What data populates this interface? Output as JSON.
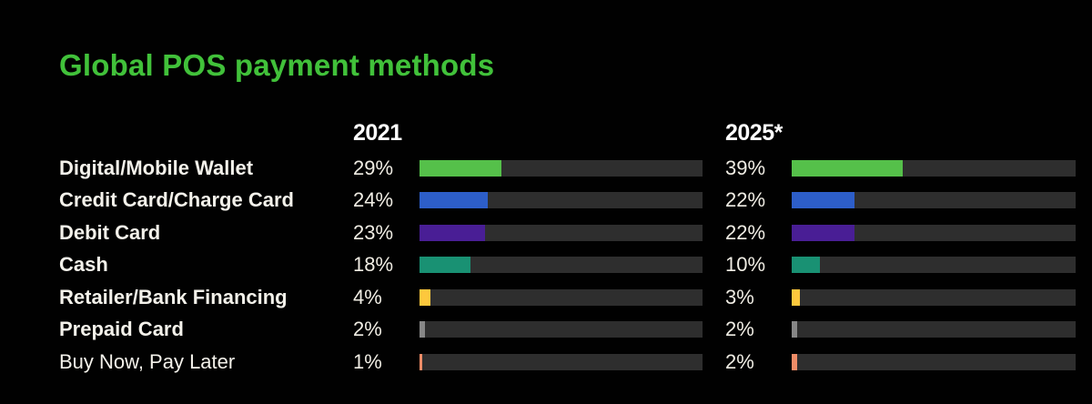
{
  "title": "Global POS payment methods",
  "title_color": "#41c13a",
  "background_color": "#010101",
  "chart_data": {
    "type": "bar",
    "orientation": "horizontal",
    "title": "Global POS payment methods",
    "categories": [
      "Digital/Mobile Wallet",
      "Credit Card/Charge Card",
      "Debit Card",
      "Cash",
      "Retailer/Bank Financing",
      "Prepaid Card",
      "Buy Now, Pay Later"
    ],
    "series": [
      {
        "name": "2021",
        "values": [
          29,
          24,
          23,
          18,
          4,
          2,
          1
        ]
      },
      {
        "name": "2025*",
        "values": [
          39,
          22,
          22,
          10,
          3,
          2,
          2
        ]
      }
    ],
    "value_suffix": "%",
    "xlim": [
      0,
      100
    ],
    "grid": false,
    "legend_position": "column-headers",
    "bar_colors": [
      "#55c04a",
      "#2d5ec9",
      "#491e95",
      "#199173",
      "#fdc83d",
      "#878787",
      "#ef8c67"
    ],
    "track_color": "#2e2e2e",
    "label_bold": [
      true,
      true,
      true,
      true,
      true,
      true,
      false
    ]
  }
}
